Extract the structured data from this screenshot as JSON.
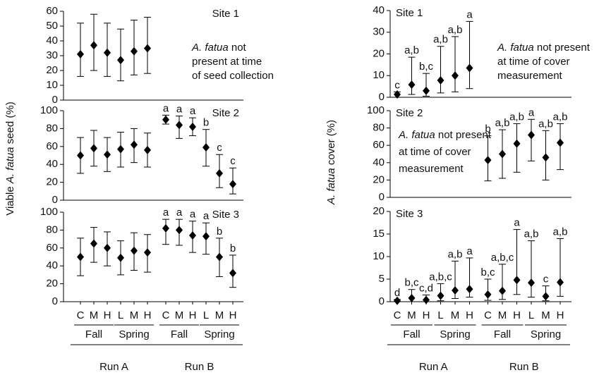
{
  "chart_data": [
    {
      "type": "errorbar",
      "site": "Site 1",
      "site_position": "top-right",
      "color": "#000000",
      "ylim": [
        0,
        60
      ],
      "yticks": [
        0,
        10,
        20,
        30,
        40,
        50,
        60
      ],
      "values": [
        31,
        37,
        32,
        27,
        33,
        35,
        null,
        null,
        null,
        null,
        null,
        null
      ],
      "lower": [
        16,
        20,
        16,
        13,
        17,
        18,
        null,
        null,
        null,
        null,
        null,
        null
      ],
      "upper": [
        52,
        58,
        52,
        48,
        54,
        56,
        null,
        null,
        null,
        null,
        null,
        null
      ],
      "note": [
        [
          {
            "text": "A. fatua",
            "italic": true
          },
          {
            "text": " not",
            "italic": false
          }
        ],
        [
          {
            "text": "present at time",
            "italic": false
          }
        ],
        [
          {
            "text": "of seed collection",
            "italic": false
          }
        ]
      ]
    },
    {
      "type": "errorbar",
      "site": "Site 2",
      "site_position": "top-right",
      "color": "#000000",
      "ylim": [
        0,
        100
      ],
      "yticks": [
        0,
        20,
        40,
        60,
        80,
        100
      ],
      "ylabel": [
        {
          "text": "Viable ",
          "italic": false
        },
        {
          "text": "A. fatua",
          "italic": true
        },
        {
          "text": " seed (%)",
          "italic": false
        }
      ],
      "values": [
        50,
        58,
        51,
        57,
        62,
        56,
        90,
        84,
        82,
        59,
        30,
        18
      ],
      "lower": [
        30,
        38,
        32,
        37,
        42,
        37,
        85,
        69,
        72,
        38,
        14,
        7
      ],
      "upper": [
        70,
        78,
        70,
        76,
        80,
        75,
        95,
        94,
        92,
        79,
        51,
        36
      ],
      "letters": [
        null,
        null,
        null,
        null,
        null,
        null,
        "a",
        "a",
        "a",
        "b",
        "c",
        "c"
      ]
    },
    {
      "type": "errorbar",
      "site": "Site 3",
      "site_position": "top-right",
      "color": "#000000",
      "ylim": [
        0,
        100
      ],
      "yticks": [
        0,
        20,
        40,
        60,
        80,
        100
      ],
      "values": [
        50,
        65,
        60,
        49,
        57,
        55,
        82,
        80,
        74,
        73,
        50,
        32
      ],
      "lower": [
        29,
        44,
        40,
        30,
        35,
        33,
        64,
        63,
        55,
        53,
        28,
        16
      ],
      "upper": [
        71,
        83,
        78,
        68,
        77,
        75,
        92,
        92,
        90,
        88,
        71,
        52
      ],
      "letters": [
        null,
        null,
        null,
        null,
        null,
        null,
        "a",
        "a",
        "a",
        "a",
        "b",
        "b"
      ],
      "categories": [
        "C",
        "M",
        "H",
        "L",
        "M",
        "H",
        "C",
        "M",
        "H",
        "L",
        "M",
        "H"
      ],
      "subgroups": [
        "Fall",
        "Spring",
        "Fall",
        "Spring"
      ],
      "runs": [
        "Run A",
        "Run B"
      ]
    },
    {
      "type": "errorbar",
      "site": "Site 1",
      "site_position": "top-left",
      "color": "#000000",
      "ylim": [
        0,
        40
      ],
      "yticks": [
        0,
        10,
        20,
        30,
        40
      ],
      "values": [
        1.3,
        5.8,
        3,
        7.8,
        10,
        13.5,
        null,
        null,
        null,
        null,
        null,
        null
      ],
      "lower": [
        0,
        1.3,
        0.5,
        2,
        2.5,
        4,
        null,
        null,
        null,
        null,
        null,
        null
      ],
      "upper": [
        2.5,
        18.5,
        11,
        23.5,
        28,
        35,
        null,
        null,
        null,
        null,
        null,
        null
      ],
      "letters": [
        "c",
        "a,b",
        "b,c",
        "a,b",
        "a,b",
        "a",
        null,
        null,
        null,
        null,
        null,
        null
      ],
      "note": [
        [
          {
            "text": "A. fatua",
            "italic": true
          },
          {
            "text": " not present",
            "italic": false
          }
        ],
        [
          {
            "text": "at time of cover",
            "italic": false
          }
        ],
        [
          {
            "text": "measurement",
            "italic": false
          }
        ]
      ]
    },
    {
      "type": "errorbar",
      "site": "Site 2",
      "site_position": "top-left",
      "color": "#000000",
      "ylim": [
        0,
        100
      ],
      "yticks": [
        0,
        20,
        40,
        60,
        80,
        100
      ],
      "ylabel": [
        {
          "text": "A. fatua",
          "italic": true
        },
        {
          "text": " cover (%)",
          "italic": false
        }
      ],
      "values": [
        null,
        null,
        null,
        null,
        null,
        null,
        43,
        50,
        62,
        72,
        46,
        63
      ],
      "lower": [
        null,
        null,
        null,
        null,
        null,
        null,
        19,
        22,
        29,
        42,
        20,
        32
      ],
      "upper": [
        null,
        null,
        null,
        null,
        null,
        null,
        71,
        78,
        85,
        90,
        77,
        85
      ],
      "letters": [
        null,
        null,
        null,
        null,
        null,
        null,
        "b",
        "a,b",
        "a,b",
        "a",
        "a,b",
        "a,b"
      ],
      "note": [
        [
          {
            "text": "A. fatua",
            "italic": true
          },
          {
            "text": " not present",
            "italic": false
          }
        ],
        [
          {
            "text": "at time of cover",
            "italic": false
          }
        ],
        [
          {
            "text": "measurement",
            "italic": false
          }
        ]
      ]
    },
    {
      "type": "errorbar",
      "site": "Site 3",
      "site_position": "top-left",
      "color": "#000000",
      "ylim": [
        0,
        20
      ],
      "yticks": [
        0,
        5,
        10,
        15,
        20
      ],
      "values": [
        0.2,
        0.8,
        0.4,
        1.3,
        2.5,
        2.8,
        1.6,
        2.4,
        4.8,
        4.2,
        1.2,
        4.3
      ],
      "lower": [
        0,
        0,
        0,
        0.2,
        0.7,
        1,
        0.3,
        0.5,
        1.6,
        1,
        0.2,
        1.2
      ],
      "upper": [
        0.5,
        2.7,
        1.5,
        4,
        9,
        9.7,
        5,
        8.3,
        16,
        13.5,
        3.5,
        14
      ],
      "letters": [
        "d",
        "b,c",
        "c,d",
        "a,b,c",
        "a,b",
        "a",
        "b,c",
        "a,b,c",
        "a",
        "a,b",
        "c",
        "a,b"
      ],
      "categories": [
        "C",
        "M",
        "H",
        "L",
        "M",
        "H",
        "C",
        "M",
        "H",
        "L",
        "M",
        "H"
      ],
      "subgroups": [
        "Fall",
        "Spring",
        "Fall",
        "Spring"
      ],
      "runs": [
        "Run A",
        "Run B"
      ]
    }
  ]
}
